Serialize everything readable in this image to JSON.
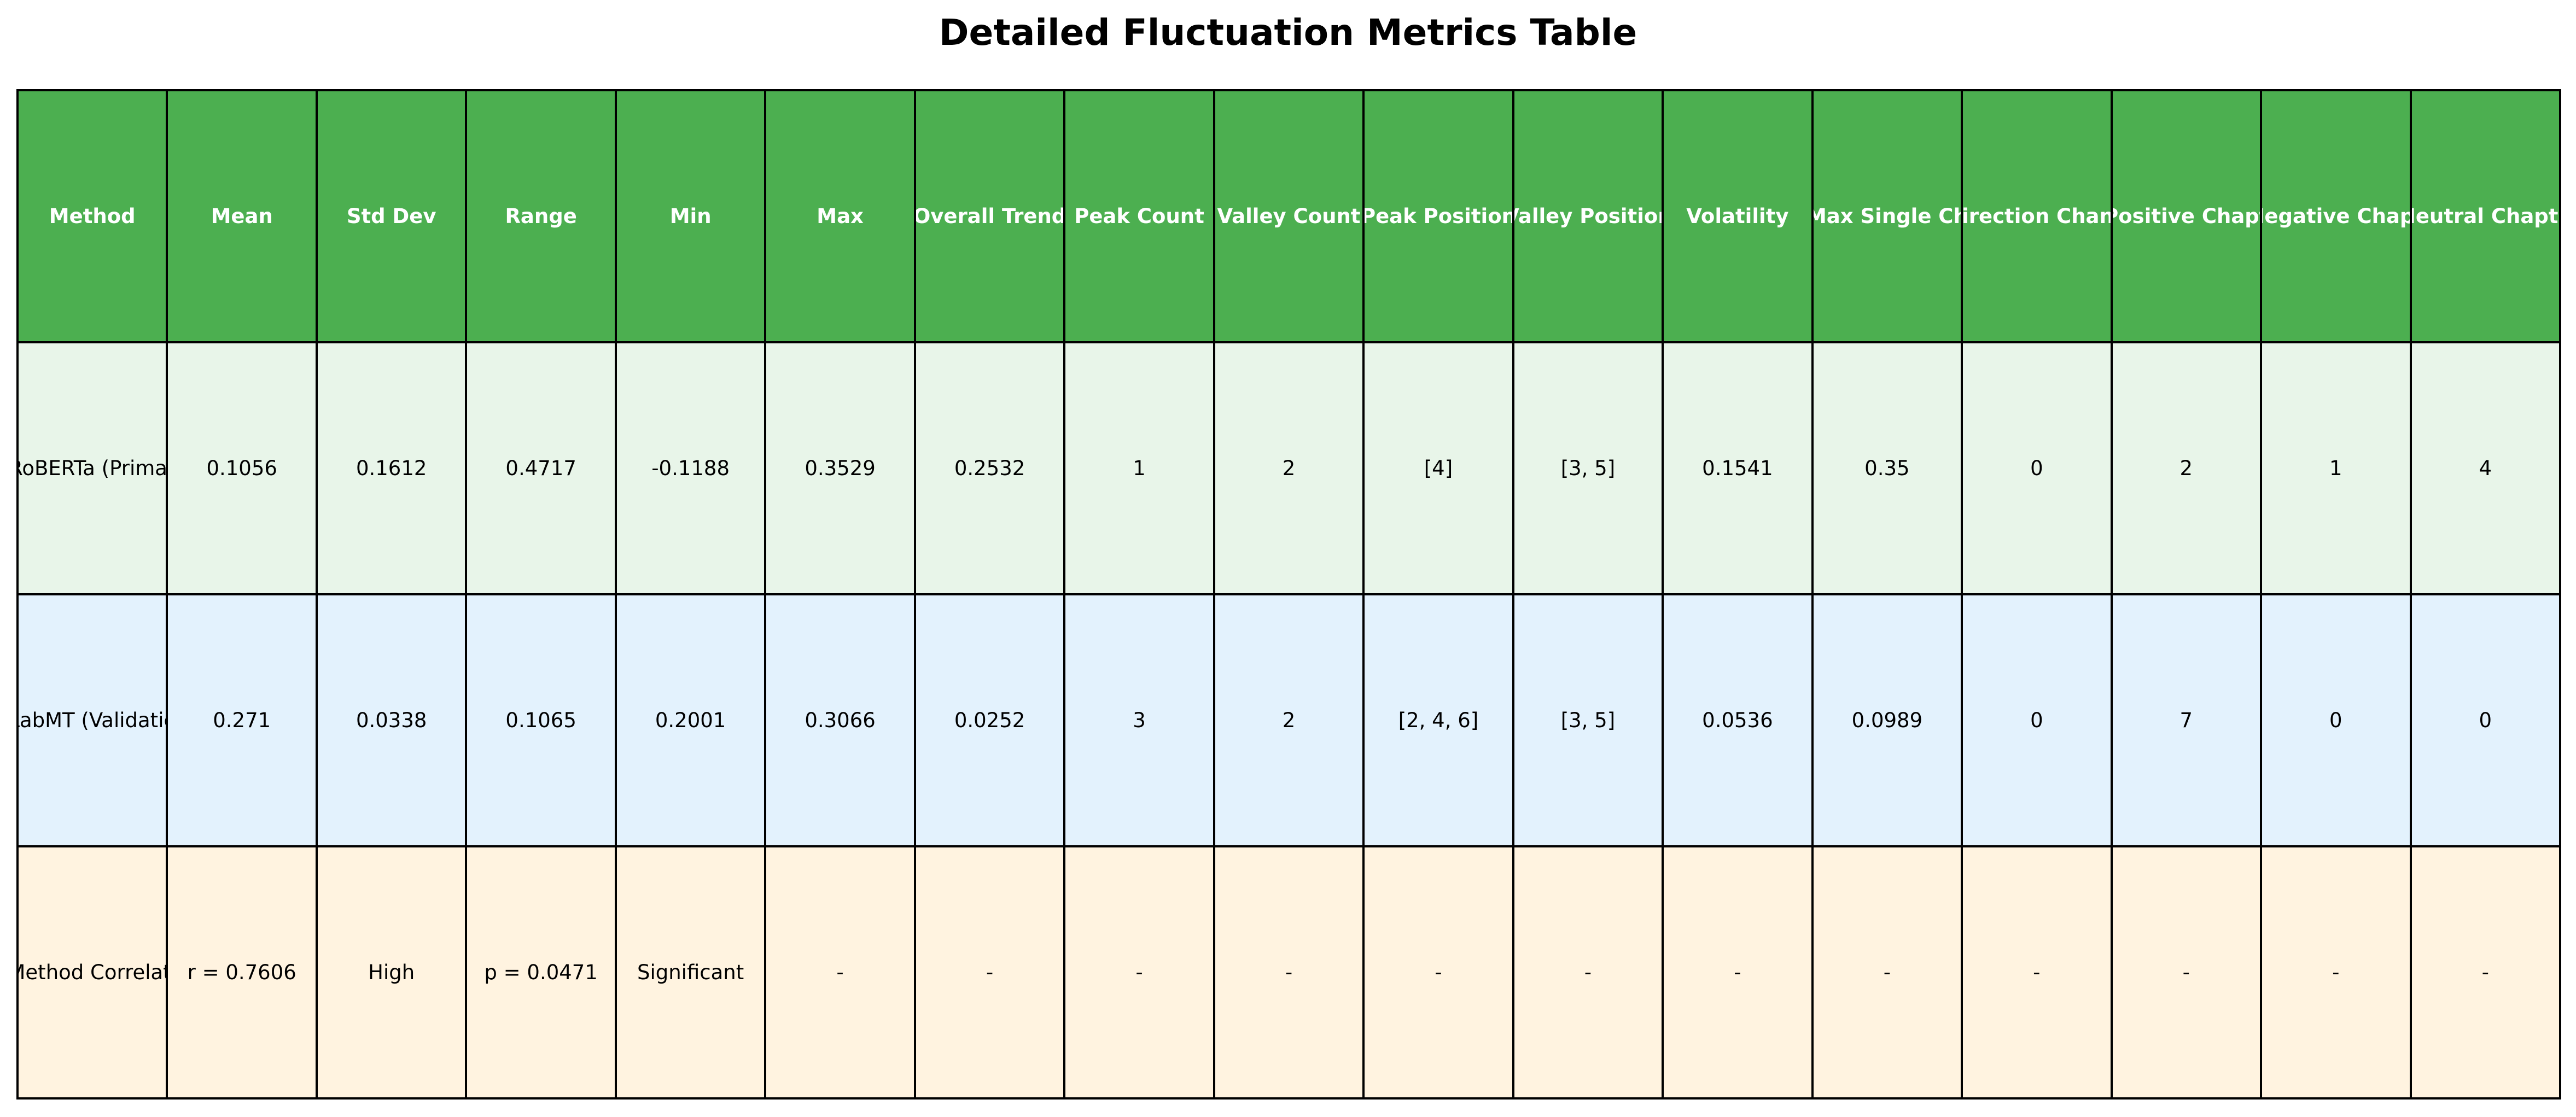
{
  "title": "Detailed Fluctuation Metrics Table",
  "colors": {
    "header_bg": "#4caf50",
    "header_text": "#ffffff",
    "row_backgrounds": [
      "#e8f5e9",
      "#e3f2fd",
      "#fff3e0"
    ],
    "grid_line": "#000000"
  },
  "chart_data": {
    "type": "table",
    "title": "Detailed Fluctuation Metrics Table",
    "columns": [
      "Method",
      "Mean",
      "Std Dev",
      "Range",
      "Min",
      "Max",
      "Overall Trend",
      "Peak Count",
      "Valley Count",
      "Peak Position",
      "Valley Position",
      "Volatility",
      "Max Single Ch",
      "Direction Chang",
      "Positive Chapt",
      "Negative Chapt",
      "Neutral Chapte"
    ],
    "rows": [
      [
        "RoBERTa (Primar",
        "0.1056",
        "0.1612",
        "0.4717",
        "-0.1188",
        "0.3529",
        "0.2532",
        "1",
        "2",
        "[4]",
        "[3, 5]",
        "0.1541",
        "0.35",
        "0",
        "2",
        "1",
        "4"
      ],
      [
        "LabMT (Validatio",
        "0.271",
        "0.0338",
        "0.1065",
        "0.2001",
        "0.3066",
        "0.0252",
        "3",
        "2",
        "[2, 4, 6]",
        "[3, 5]",
        "0.0536",
        "0.0989",
        "0",
        "7",
        "0",
        "0"
      ],
      [
        "Method Correlati",
        "r = 0.7606",
        "High",
        "p = 0.0471",
        "Significant",
        "-",
        "-",
        "-",
        "-",
        "-",
        "-",
        "-",
        "-",
        "-",
        "-",
        "-",
        "-"
      ]
    ]
  }
}
